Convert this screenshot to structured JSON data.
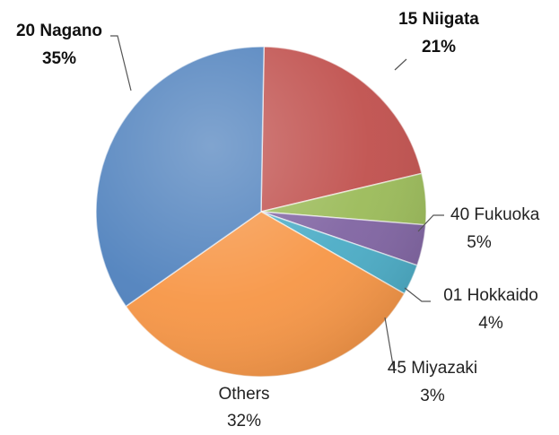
{
  "chart_data": {
    "type": "pie",
    "title": "",
    "start_angle_deg": 90,
    "direction": "clockwise",
    "slices": [
      {
        "label": "15 Niigata",
        "percent_label": "21%",
        "value": 21,
        "color": "#c0504d",
        "bold": true
      },
      {
        "label": "40 Fukuoka",
        "percent_label": "5%",
        "value": 5,
        "color": "#9bbb59",
        "bold": false
      },
      {
        "label": "01 Hokkaido",
        "percent_label": "4%",
        "value": 4,
        "color": "#8064a2",
        "bold": false
      },
      {
        "label": "45 Miyazaki",
        "percent_label": "3%",
        "value": 3,
        "color": "#4bacc6",
        "bold": false
      },
      {
        "label": "Others",
        "percent_label": "32%",
        "value": 32,
        "color": "#f79646",
        "bold": false
      },
      {
        "label": "20 Nagano",
        "percent_label": "35%",
        "value": 35,
        "color": "#4f81bd",
        "bold": true
      }
    ]
  }
}
